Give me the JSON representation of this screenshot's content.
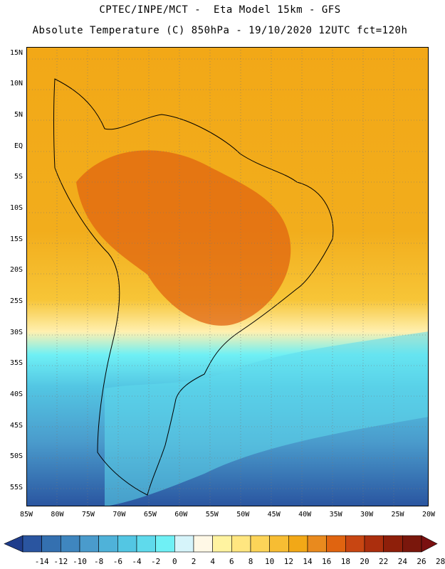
{
  "title": {
    "line1": "CPTEC/INPE/MCT -  Eta Model 15km - GFS",
    "line2": "Absolute Temperature (C) 850hPa - 19/10/2020 12UTC fct=120h"
  },
  "map": {
    "variable": "Absolute Temperature (C) 850hPa",
    "region": "South America",
    "lon_range": [
      -85,
      -20
    ],
    "lat_range": [
      -58,
      16
    ],
    "lat_labels": [
      "15N",
      "10N",
      "5N",
      "EQ",
      "5S",
      "10S",
      "15S",
      "20S",
      "25S",
      "30S",
      "35S",
      "40S",
      "45S",
      "50S",
      "55S"
    ],
    "lon_labels": [
      "85W",
      "80W",
      "75W",
      "70W",
      "65W",
      "60W",
      "55W",
      "50W",
      "45W",
      "40W",
      "35W",
      "30W",
      "25W",
      "20W"
    ]
  },
  "colorbar": {
    "labels": [
      "-14",
      "-12",
      "-10",
      "-8",
      "-6",
      "-4",
      "-2",
      "0",
      "2",
      "4",
      "6",
      "8",
      "10",
      "12",
      "14",
      "16",
      "18",
      "20",
      "22",
      "24",
      "26",
      "28"
    ],
    "colors": [
      "#1f3d8c",
      "#2a55a0",
      "#3470b0",
      "#3f86bf",
      "#4a9bcc",
      "#4fb2d9",
      "#53c6e3",
      "#5fdaec",
      "#6ff0f5",
      "#d6f4fa",
      "#fff8e6",
      "#fff3a0",
      "#ffe680",
      "#fcd458",
      "#f7bd33",
      "#f2a817",
      "#e98a1e",
      "#e06410",
      "#c84612",
      "#ab2e0d",
      "#8e1f0a",
      "#7a170c",
      "#7a1010"
    ]
  }
}
